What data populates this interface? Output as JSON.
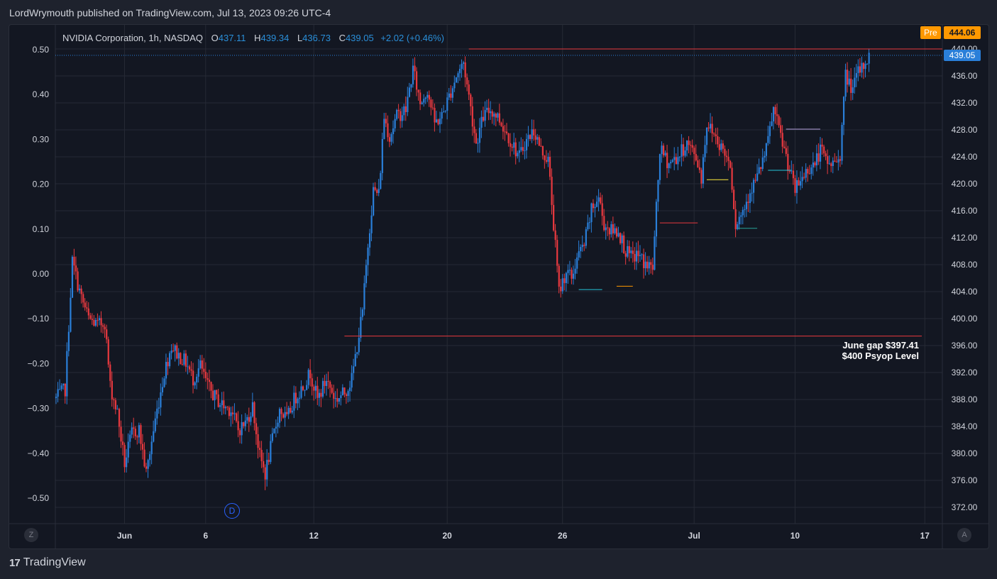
{
  "header": {
    "published_by": "LordWrymouth published on TradingView.com, Jul 13, 2023 09:26 UTC-4"
  },
  "legend": {
    "symbol": "NVIDIA Corporation, 1h, NASDAQ",
    "o_label": "O",
    "o_value": "437.11",
    "h_label": "H",
    "h_value": "439.34",
    "l_label": "L",
    "l_value": "436.73",
    "c_label": "C",
    "c_value": "439.05",
    "change": "+2.02 (+0.46%)"
  },
  "premarket": {
    "label": "Pre",
    "price": "444.06"
  },
  "footer": {
    "brand": "TradingView",
    "logo_mark": "17"
  },
  "corner_buttons": {
    "left": "Z",
    "right": "A"
  },
  "event_marker": "D",
  "colors": {
    "up": "#2a7fd9",
    "down": "#e8393f",
    "background": "#131722",
    "grid": "#262a35",
    "text": "#d1d4dc",
    "accent": "#ff9800",
    "highlight": "#2962ff"
  },
  "chart_data": {
    "type": "candlestick",
    "title": "NVIDIA Corporation, 1h, NASDAQ",
    "right_axis": {
      "ticks": [
        "372.00",
        "376.00",
        "380.00",
        "384.00",
        "388.00",
        "392.00",
        "396.00",
        "400.00",
        "404.00",
        "408.00",
        "412.00",
        "416.00",
        "420.00",
        "424.00",
        "428.00",
        "432.00",
        "436.00",
        "440.00"
      ],
      "range": [
        368,
        442
      ],
      "last_price_label": "439.05"
    },
    "left_axis": {
      "ticks": [
        "0.50",
        "0.40",
        "0.30",
        "0.20",
        "0.10",
        "0.00",
        "−0.10",
        "−0.20",
        "−0.30",
        "−0.40",
        "−0.50"
      ]
    },
    "x_axis": {
      "tick_labels": [
        "Jun",
        "6",
        "12",
        "20",
        "26",
        "Jul",
        "10",
        "17"
      ]
    },
    "resistance_line": 440.0,
    "last_close": 439.05,
    "gap_line": {
      "price": 397.41,
      "label_1": "June gap $397.41",
      "label_2": "$400 Psyop Level"
    },
    "path": [
      [
        0,
        388.2
      ],
      [
        5,
        389.5
      ],
      [
        9,
        408.5
      ],
      [
        14,
        403
      ],
      [
        18,
        400
      ],
      [
        23,
        399
      ],
      [
        27,
        399.5
      ],
      [
        30,
        390
      ],
      [
        34,
        386
      ],
      [
        38,
        378.5
      ],
      [
        42,
        383
      ],
      [
        46,
        383.5
      ],
      [
        50,
        377
      ],
      [
        55,
        385
      ],
      [
        60,
        392
      ],
      [
        64,
        396
      ],
      [
        68,
        394.5
      ],
      [
        72,
        393.5
      ],
      [
        76,
        391
      ],
      [
        80,
        393
      ],
      [
        84,
        390
      ],
      [
        89,
        388
      ],
      [
        93,
        387
      ],
      [
        97,
        386.5
      ],
      [
        101,
        383.5
      ],
      [
        105,
        384.5
      ],
      [
        109,
        387
      ],
      [
        113,
        379.5
      ],
      [
        116,
        377
      ],
      [
        120,
        382
      ],
      [
        124,
        386.5
      ],
      [
        128,
        385
      ],
      [
        132,
        388
      ],
      [
        137,
        390
      ],
      [
        141,
        392
      ],
      [
        145,
        388
      ],
      [
        150,
        391
      ],
      [
        155,
        388
      ],
      [
        160,
        389
      ],
      [
        164,
        391
      ],
      [
        167,
        396
      ],
      [
        170,
        401
      ],
      [
        173,
        411
      ],
      [
        176,
        419
      ],
      [
        179,
        418.5
      ],
      [
        182,
        430
      ],
      [
        185,
        427
      ],
      [
        189,
        430
      ],
      [
        194,
        431
      ],
      [
        198,
        437
      ],
      [
        202,
        432
      ],
      [
        206,
        434
      ],
      [
        210,
        429
      ],
      [
        214,
        430
      ],
      [
        218,
        433
      ],
      [
        222,
        436
      ],
      [
        226,
        438
      ],
      [
        229,
        433
      ],
      [
        233,
        426
      ],
      [
        237,
        430
      ],
      [
        241,
        431
      ],
      [
        245,
        430
      ],
      [
        249,
        428
      ],
      [
        253,
        426
      ],
      [
        257,
        424
      ],
      [
        260,
        426
      ],
      [
        265,
        428
      ],
      [
        269,
        425
      ],
      [
        273,
        423.5
      ],
      [
        276,
        414
      ],
      [
        279,
        404
      ],
      [
        283,
        407
      ],
      [
        286,
        406
      ],
      [
        289,
        409
      ],
      [
        293,
        411
      ],
      [
        297,
        416
      ],
      [
        301,
        418
      ],
      [
        304,
        414
      ],
      [
        308,
        413
      ],
      [
        312,
        413
      ],
      [
        316,
        410
      ],
      [
        319,
        409
      ],
      [
        323,
        409.5
      ],
      [
        327,
        408
      ],
      [
        331,
        407.5
      ],
      [
        335,
        425
      ],
      [
        340,
        423
      ],
      [
        345,
        424
      ],
      [
        350,
        426
      ],
      [
        355,
        424
      ],
      [
        358,
        421
      ],
      [
        361,
        429
      ],
      [
        366,
        427
      ],
      [
        370,
        425
      ],
      [
        374,
        423
      ],
      [
        377,
        414
      ],
      [
        381,
        416
      ],
      [
        385,
        419
      ],
      [
        389,
        421
      ],
      [
        394,
        425
      ],
      [
        398,
        431
      ],
      [
        402,
        427
      ],
      [
        406,
        423
      ],
      [
        410,
        419
      ],
      [
        414,
        421
      ],
      [
        418,
        422.5
      ],
      [
        421,
        423
      ],
      [
        424,
        425
      ],
      [
        428,
        423
      ],
      [
        432,
        423
      ],
      [
        435,
        424.5
      ],
      [
        438,
        436
      ],
      [
        442,
        434
      ],
      [
        445,
        436.5
      ],
      [
        448,
        437.5
      ],
      [
        451,
        439.05
      ]
    ],
    "series_note": "1h candles, Jun 1 to Jul 13 2023"
  }
}
